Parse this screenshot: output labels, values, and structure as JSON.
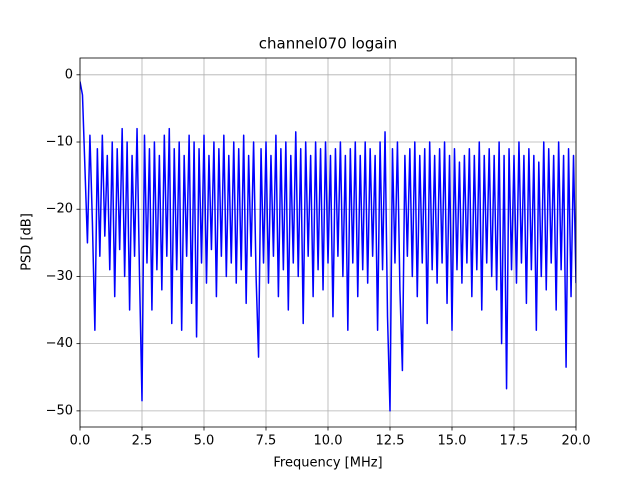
{
  "chart_data": {
    "type": "line",
    "title": "channel070 logain",
    "xlabel": "Frequency [MHz]",
    "ylabel": "PSD [dB]",
    "xlim": [
      0,
      20
    ],
    "ylim": [
      -52.4,
      2.5
    ],
    "xticks": [
      {
        "value": 0,
        "label": "0.0"
      },
      2.5,
      {
        "value": 5,
        "label": "5.0"
      },
      7.5,
      {
        "value": 10,
        "label": "10.0"
      },
      12.5,
      {
        "value": 15,
        "label": "15.0"
      },
      17.5,
      {
        "value": 20,
        "label": "20.0"
      }
    ],
    "yticks": [
      {
        "value": 0,
        "label": "0"
      },
      {
        "value": -10,
        "label": "−10"
      },
      {
        "value": -20,
        "label": "−20"
      },
      {
        "value": -30,
        "label": "−30"
      },
      {
        "value": -40,
        "label": "−40"
      },
      {
        "value": -50,
        "label": "−50"
      }
    ],
    "grid": true,
    "x": [
      0,
      0.1,
      0.2,
      0.3,
      0.4,
      0.5,
      0.6,
      0.7,
      0.8,
      0.9,
      1,
      1.1,
      1.2,
      1.3,
      1.4,
      1.5,
      1.6,
      1.7,
      1.8,
      1.9,
      2,
      2.1,
      2.2,
      2.3,
      2.4,
      2.5,
      2.6,
      2.7,
      2.8,
      2.9,
      3,
      3.1,
      3.2,
      3.3,
      3.4,
      3.5,
      3.6,
      3.7,
      3.8,
      3.9,
      4,
      4.1,
      4.2,
      4.3,
      4.4,
      4.5,
      4.6,
      4.7,
      4.8,
      4.9,
      5,
      5.1,
      5.2,
      5.3,
      5.4,
      5.5,
      5.6,
      5.7,
      5.8,
      5.9,
      6,
      6.1,
      6.2,
      6.3,
      6.4,
      6.5,
      6.6,
      6.7,
      6.8,
      6.9,
      7,
      7.1,
      7.2,
      7.3,
      7.4,
      7.5,
      7.6,
      7.7,
      7.8,
      7.9,
      8,
      8.1,
      8.2,
      8.3,
      8.4,
      8.5,
      8.6,
      8.7,
      8.8,
      8.9,
      9,
      9.1,
      9.2,
      9.3,
      9.4,
      9.5,
      9.6,
      9.7,
      9.8,
      9.9,
      10,
      10.1,
      10.2,
      10.3,
      10.4,
      10.5,
      10.6,
      10.7,
      10.8,
      10.9,
      11,
      11.1,
      11.2,
      11.3,
      11.4,
      11.5,
      11.6,
      11.7,
      11.8,
      11.9,
      12,
      12.1,
      12.2,
      12.3,
      12.4,
      12.5,
      12.6,
      12.7,
      12.8,
      12.9,
      13,
      13.1,
      13.2,
      13.3,
      13.4,
      13.5,
      13.6,
      13.7,
      13.8,
      13.9,
      14,
      14.1,
      14.2,
      14.3,
      14.4,
      14.5,
      14.6,
      14.7,
      14.8,
      14.9,
      15,
      15.1,
      15.2,
      15.3,
      15.4,
      15.5,
      15.6,
      15.7,
      15.8,
      15.9,
      16,
      16.1,
      16.2,
      16.3,
      16.4,
      16.5,
      16.6,
      16.7,
      16.8,
      16.9,
      17,
      17.1,
      17.2,
      17.3,
      17.4,
      17.5,
      17.6,
      17.7,
      17.8,
      17.9,
      18,
      18.1,
      18.2,
      18.3,
      18.4,
      18.5,
      18.6,
      18.7,
      18.8,
      18.9,
      19,
      19.1,
      19.2,
      19.3,
      19.4,
      19.5,
      19.6,
      19.7,
      19.8,
      19.9,
      20
    ],
    "series": [
      {
        "color": "#0000ff",
        "values": [
          -1,
          -3,
          -14,
          -25,
          -9,
          -22,
          -38,
          -11,
          -27,
          -9,
          -24,
          -12,
          -29,
          -10,
          -33,
          -11,
          -26,
          -8,
          -30,
          -10,
          -35,
          -12,
          -27,
          -8,
          -30,
          -48.5,
          -9,
          -28,
          -11,
          -35,
          -10,
          -29,
          -12,
          -32,
          -9,
          -27,
          -8,
          -37,
          -11,
          -29,
          -10,
          -38,
          -12,
          -27,
          -9,
          -34,
          -10,
          -39,
          -11,
          -28,
          -9,
          -31,
          -12,
          -26,
          -10,
          -33,
          -11,
          -27,
          -9,
          -30,
          -12,
          -28,
          -10,
          -31,
          -11,
          -29,
          -9,
          -34,
          -12,
          -27,
          -10,
          -30,
          -42,
          -11,
          -28,
          -10,
          -31,
          -12,
          -27,
          -9,
          -33,
          -11,
          -29,
          -10,
          -35,
          -12,
          -28,
          -8.5,
          -30,
          -11,
          -37,
          -10,
          -27,
          -12,
          -33,
          -10,
          -29,
          -11,
          -32,
          -10,
          -28,
          -12,
          -36,
          -11,
          -27,
          -10,
          -30,
          -12,
          -38,
          -11,
          -28,
          -10,
          -33,
          -12,
          -29,
          -10,
          -31,
          -11,
          -27,
          -12,
          -38,
          -10,
          -29,
          -8.5,
          -36,
          -50,
          -11,
          -28,
          -10,
          -32,
          -44,
          -12,
          -27,
          -11,
          -30,
          -10,
          -33,
          -12,
          -28,
          -11,
          -37,
          -10,
          -29,
          -12,
          -31,
          -11,
          -28,
          -10,
          -34,
          -12,
          -38,
          -11,
          -29,
          -13,
          -31,
          -12,
          -28,
          -11,
          -33,
          -12,
          -29,
          -10,
          -35,
          -12,
          -28,
          -11,
          -30,
          -12,
          -32,
          -10,
          -40,
          -12,
          -46.7,
          -11,
          -29,
          -12,
          -31,
          -10,
          -28,
          -12,
          -34,
          -11,
          -29,
          -12,
          -38,
          -13,
          -30,
          -10,
          -32,
          -11,
          -28,
          -12,
          -35,
          -10,
          -29,
          -12,
          -43.5,
          -11,
          -33,
          -12,
          -31
        ]
      }
    ]
  }
}
